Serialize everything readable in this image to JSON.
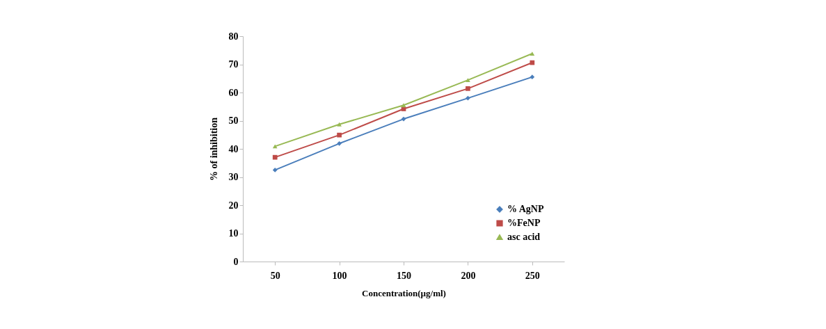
{
  "chart_data": {
    "type": "line",
    "xlabel": "Concentration(µg/ml)",
    "ylabel": "% of inhibition",
    "categories": [
      "50",
      "100",
      "150",
      "200",
      "250"
    ],
    "ylim": [
      0,
      80
    ],
    "yticks": [
      0,
      10,
      20,
      30,
      40,
      50,
      60,
      70,
      80
    ],
    "grid": false,
    "legend": "bottom right",
    "series": [
      {
        "name": "% AgNP",
        "color": "#4a7ebb",
        "marker": "diamond",
        "values": [
          32.5,
          41.9,
          50.6,
          58.0,
          65.5
        ]
      },
      {
        "name": "%FeNP",
        "color": "#be4b48",
        "marker": "square",
        "values": [
          37.0,
          44.9,
          54.2,
          61.4,
          70.6
        ]
      },
      {
        "name": "asc acid",
        "color": "#98b954",
        "marker": "triangle",
        "values": [
          40.9,
          48.7,
          55.5,
          64.4,
          73.8
        ]
      }
    ]
  }
}
